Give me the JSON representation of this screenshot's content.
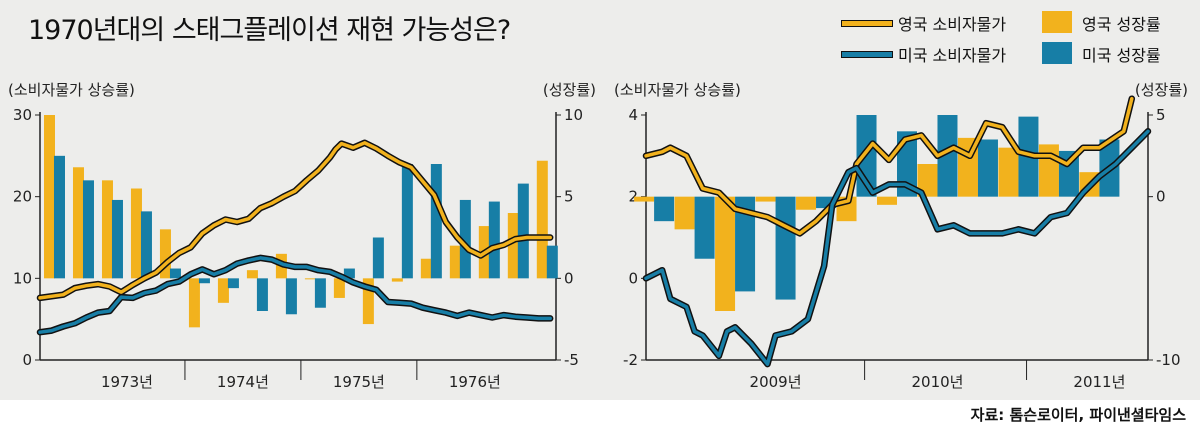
{
  "title": "1970년대의 스태그플레이션 재현 가능성은?",
  "source": "자료: 톰슨로이터, 파이낸셜타임스",
  "colors": {
    "uk": "#f2b21d",
    "us": "#177ea6",
    "background": "#ededeb"
  },
  "legend": {
    "uk_cpi": "영국 소비자물가",
    "us_cpi": "미국 소비자물가",
    "uk_growth": "영국 성장률",
    "us_growth": "미국 성장률"
  },
  "chart_data": [
    {
      "type": "bar+line",
      "left_axis_label": "(소비자물가 상승률)",
      "right_axis_label": "(성장률)",
      "left_ylim": [
        0,
        30
      ],
      "left_ticks": [
        "0",
        "10",
        "20",
        "30"
      ],
      "right_ylim": [
        -5,
        10
      ],
      "right_ticks": [
        "-5",
        "0",
        "5",
        "10"
      ],
      "x_range": [
        1972.5,
        1976.95
      ],
      "x_ticks": [
        {
          "x": 1973.25,
          "label": "1973년"
        },
        {
          "x": 1974.25,
          "label": "1974년"
        },
        {
          "x": 1975.25,
          "label": "1975년"
        },
        {
          "x": 1976.25,
          "label": "1976년"
        }
      ],
      "year_separators": [
        1973.75,
        1974.75,
        1975.75
      ],
      "grid": false,
      "bars": {
        "quarters": [
          1972.625,
          1972.875,
          1973.125,
          1973.375,
          1973.625,
          1973.875,
          1974.125,
          1974.375,
          1974.625,
          1974.875,
          1975.125,
          1975.375,
          1975.625,
          1975.875,
          1976.125,
          1976.375,
          1976.625,
          1976.875
        ],
        "series": [
          {
            "name": "영국 성장률",
            "color_key": "uk",
            "values": [
              10.0,
              6.8,
              6.0,
              5.5,
              3.0,
              -3.0,
              -1.5,
              0.5,
              1.5,
              0.0,
              -1.2,
              -2.8,
              -0.2,
              1.2,
              2.0,
              3.2,
              4.0,
              7.2
            ]
          },
          {
            "name": "미국 성장률",
            "color_key": "us",
            "values": [
              7.5,
              6.0,
              4.8,
              4.1,
              0.6,
              -0.3,
              -0.6,
              -2.0,
              -2.2,
              -1.8,
              0.6,
              2.5,
              7.0,
              7.0,
              4.8,
              4.7,
              5.8,
              2.0
            ]
          }
        ]
      },
      "lines": [
        {
          "name": "영국 소비자물가",
          "color_key": "uk",
          "x": [
            1972.5,
            1972.7,
            1972.8,
            1972.9,
            1973.0,
            1973.1,
            1973.2,
            1973.3,
            1973.4,
            1973.5,
            1973.6,
            1973.7,
            1973.8,
            1973.9,
            1974.0,
            1974.1,
            1974.2,
            1974.3,
            1974.4,
            1974.5,
            1974.6,
            1974.7,
            1974.8,
            1974.9,
            1975.0,
            1975.05,
            1975.1,
            1975.2,
            1975.3,
            1975.4,
            1975.5,
            1975.6,
            1975.7,
            1975.8,
            1975.9,
            1976.0,
            1976.1,
            1976.2,
            1976.3,
            1976.4,
            1976.5,
            1976.6,
            1976.7,
            1976.9
          ],
          "y": [
            7.6,
            8.0,
            8.8,
            9.1,
            9.3,
            9.0,
            8.3,
            9.2,
            10.0,
            10.7,
            12.0,
            13.1,
            13.8,
            15.5,
            16.5,
            17.2,
            16.9,
            17.3,
            18.6,
            19.2,
            20.0,
            20.7,
            22.0,
            23.2,
            24.8,
            25.8,
            26.5,
            26.0,
            26.6,
            25.9,
            25.0,
            24.2,
            23.6,
            21.9,
            20.2,
            16.9,
            15.0,
            13.5,
            12.8,
            13.7,
            14.1,
            14.8,
            15.0,
            15.0
          ]
        },
        {
          "name": "미국 소비자물가",
          "color_key": "us",
          "x": [
            1972.5,
            1972.6,
            1972.7,
            1972.8,
            1972.9,
            1973.0,
            1973.1,
            1973.2,
            1973.3,
            1973.4,
            1973.5,
            1973.6,
            1973.7,
            1973.8,
            1973.9,
            1974.0,
            1974.1,
            1974.2,
            1974.3,
            1974.4,
            1974.5,
            1974.6,
            1974.7,
            1974.8,
            1974.9,
            1975.0,
            1975.1,
            1975.2,
            1975.3,
            1975.4,
            1975.5,
            1975.6,
            1975.7,
            1975.8,
            1975.9,
            1976.0,
            1976.1,
            1976.2,
            1976.3,
            1976.4,
            1976.5,
            1976.6,
            1976.7,
            1976.8,
            1976.9
          ],
          "y": [
            3.4,
            3.6,
            4.1,
            4.5,
            5.2,
            5.8,
            6.0,
            7.7,
            7.6,
            8.2,
            8.5,
            9.3,
            9.6,
            10.5,
            11.1,
            10.5,
            11.0,
            11.8,
            12.2,
            12.5,
            12.3,
            11.7,
            11.4,
            11.4,
            11.0,
            10.8,
            10.2,
            9.5,
            9.0,
            8.6,
            7.1,
            7.0,
            6.9,
            6.4,
            6.1,
            5.8,
            5.4,
            5.8,
            5.5,
            5.2,
            5.5,
            5.3,
            5.2,
            5.1,
            5.1
          ]
        }
      ]
    },
    {
      "type": "bar+line",
      "left_axis_label": "(소비자물가 상승률)",
      "right_axis_label": "(성장률)",
      "left_ylim": [
        -2,
        4
      ],
      "left_ticks": [
        "-2",
        "0",
        "2",
        "4"
      ],
      "right_ylim": [
        -10,
        5
      ],
      "right_ticks": [
        "-10",
        "0",
        "5"
      ],
      "x_range": [
        2008.45,
        2011.55
      ],
      "x_ticks": [
        {
          "x": 2009.25,
          "label": "2009년"
        },
        {
          "x": 2010.25,
          "label": "2010년"
        },
        {
          "x": 2011.25,
          "label": "2011년"
        }
      ],
      "year_separators": [
        2009.8,
        2010.8
      ],
      "grid": false,
      "bars": {
        "quarters": [
          2008.5,
          2008.75,
          2009.0,
          2009.25,
          2009.5,
          2009.75,
          2010.0,
          2010.25,
          2010.5,
          2010.75,
          2011.0,
          2011.25
        ],
        "series": [
          {
            "name": "영국 성장률",
            "color_key": "uk",
            "values": [
              -0.3,
              -2.0,
              -7.0,
              -0.3,
              -0.8,
              -1.5,
              -0.5,
              2.0,
              3.6,
              3.0,
              3.2,
              1.5
            ]
          },
          {
            "name": "미국 성장률",
            "color_key": "us",
            "values": [
              -1.5,
              -3.8,
              -5.8,
              -6.3,
              -0.7,
              5.0,
              4.0,
              5.0,
              3.5,
              4.9,
              2.8,
              3.5
            ]
          }
        ]
      },
      "lines": [
        {
          "name": "영국 소비자물가",
          "color_key": "uk",
          "x": [
            2008.45,
            2008.55,
            2008.6,
            2008.7,
            2008.8,
            2008.9,
            2009.0,
            2009.1,
            2009.2,
            2009.3,
            2009.4,
            2009.5,
            2009.6,
            2009.7,
            2009.75,
            2009.85,
            2009.95,
            2010.05,
            2010.15,
            2010.25,
            2010.35,
            2010.45,
            2010.55,
            2010.65,
            2010.75,
            2010.85,
            2010.95,
            2011.05,
            2011.15,
            2011.25,
            2011.4,
            2011.45
          ],
          "y": [
            3.0,
            3.1,
            3.2,
            3.0,
            2.2,
            2.1,
            1.7,
            1.6,
            1.5,
            1.3,
            1.1,
            1.4,
            1.8,
            1.9,
            2.8,
            3.3,
            2.9,
            3.4,
            3.5,
            3.0,
            3.2,
            3.0,
            3.8,
            3.7,
            3.1,
            3.0,
            3.0,
            2.8,
            3.2,
            3.2,
            3.6,
            4.4
          ]
        },
        {
          "name": "미국 소비자물가",
          "color_key": "us",
          "x": [
            2008.45,
            2008.55,
            2008.6,
            2008.7,
            2008.75,
            2008.8,
            2008.9,
            2008.95,
            2009.0,
            2009.1,
            2009.2,
            2009.25,
            2009.35,
            2009.45,
            2009.55,
            2009.6,
            2009.7,
            2009.75,
            2009.85,
            2009.95,
            2010.05,
            2010.15,
            2010.25,
            2010.35,
            2010.45,
            2010.55,
            2010.65,
            2010.75,
            2010.85,
            2010.95,
            2011.05,
            2011.15,
            2011.25,
            2011.35,
            2011.45,
            2011.55
          ],
          "y": [
            0.0,
            0.2,
            -0.5,
            -0.7,
            -1.3,
            -1.4,
            -1.9,
            -1.3,
            -1.2,
            -1.6,
            -2.1,
            -1.4,
            -1.3,
            -1.0,
            0.3,
            1.8,
            2.6,
            2.7,
            2.1,
            2.3,
            2.3,
            2.1,
            1.2,
            1.3,
            1.1,
            1.1,
            1.1,
            1.2,
            1.1,
            1.5,
            1.6,
            2.1,
            2.5,
            2.8,
            3.2,
            3.6
          ]
        }
      ]
    }
  ]
}
